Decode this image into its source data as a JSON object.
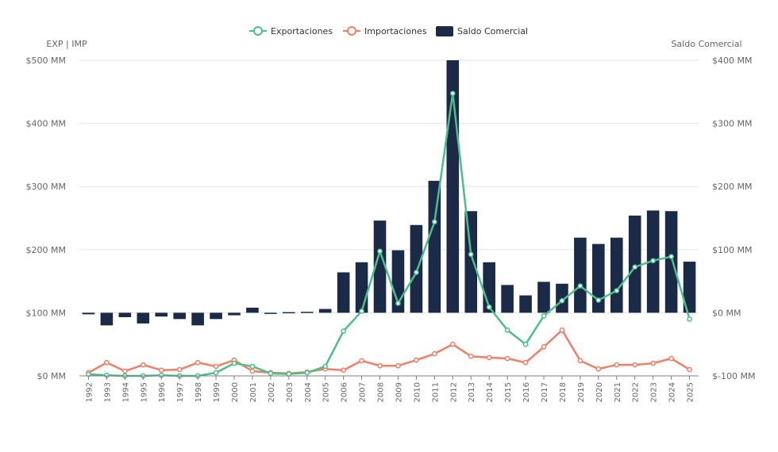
{
  "chart_data": {
    "type": "bar+line",
    "title": "",
    "categories": [
      "1992",
      "1993",
      "1994",
      "1995",
      "1996",
      "1997",
      "1998",
      "1999",
      "2000",
      "2001",
      "2002",
      "2003",
      "2004",
      "2005",
      "2006",
      "2007",
      "2008",
      "2009",
      "2010",
      "2011",
      "2012",
      "2013",
      "2014",
      "2015",
      "2016",
      "2017",
      "2018",
      "2019",
      "2020",
      "2021",
      "2022",
      "2023",
      "2024",
      "2025"
    ],
    "left_axis": {
      "label": "EXP | IMP",
      "ylim": [
        0,
        500
      ],
      "ticks": [
        0,
        100,
        200,
        300,
        400,
        500
      ],
      "tick_labels": [
        "$0 MM",
        "$100 MM",
        "$200 MM",
        "$300 MM",
        "$400 MM",
        "$500 MM"
      ]
    },
    "right_axis": {
      "label": "Saldo Comercial",
      "ylim": [
        -100,
        400
      ],
      "ticks": [
        -100,
        0,
        100,
        200,
        300,
        400
      ],
      "tick_labels": [
        "$-100 MM",
        "$0 MM",
        "$100 MM",
        "$200 MM",
        "$300 MM",
        "$400 MM"
      ]
    },
    "grid": true,
    "legend_position": "top-center",
    "series": [
      {
        "name": "Exportaciones",
        "kind": "line",
        "axis": "left",
        "color": "#4dbd8a",
        "values": [
          2.5,
          1,
          0,
          0,
          1,
          0,
          0,
          5,
          20,
          15,
          4,
          3,
          5,
          15,
          71,
          102.5,
          197.5,
          115,
          164,
          244,
          447.5,
          192.5,
          109,
          72.5,
          50,
          95,
          119,
          142.5,
          120,
          135,
          172.5,
          182.5,
          189,
          90
        ]
      },
      {
        "name": "Importaciones",
        "kind": "line",
        "axis": "left",
        "color": "#f07f68",
        "values": [
          5,
          21,
          7.5,
          17.5,
          9,
          10,
          21,
          15,
          25,
          7.5,
          5,
          4,
          6,
          11,
          9,
          24,
          16,
          16,
          25,
          35,
          50,
          31,
          29,
          27.5,
          21,
          46,
          72.5,
          24,
          11,
          17.5,
          17.5,
          20,
          27.5,
          10
        ]
      },
      {
        "name": "Saldo Comercial",
        "kind": "bar",
        "axis": "right",
        "color": "#1b2a47",
        "values": [
          -2.5,
          -20,
          -7,
          -17,
          -6,
          -10,
          -20,
          -10,
          -4,
          8,
          0,
          1,
          1.5,
          6,
          64,
          80,
          146,
          99,
          139,
          209,
          400,
          161,
          80,
          44,
          27.5,
          49,
          46,
          119,
          109,
          119,
          154,
          162,
          161,
          81
        ]
      }
    ]
  }
}
